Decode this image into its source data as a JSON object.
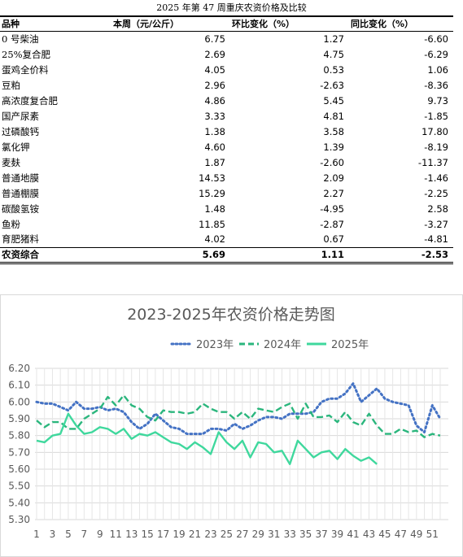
{
  "table": {
    "title": "2025 年第 47 周重庆农资价格及比较",
    "headers": [
      "品种",
      "本周（元/公斤）",
      "环比变化（%）",
      "同比变化（%）"
    ],
    "rows": [
      {
        "name": "0 号柴油",
        "price": "6.75",
        "mom": "1.27",
        "yoy": "-6.60"
      },
      {
        "name": "25%复合肥",
        "price": "2.69",
        "mom": "4.75",
        "yoy": "-6.29"
      },
      {
        "name": "蛋鸡全价料",
        "price": "4.05",
        "mom": "0.53",
        "yoy": "1.06"
      },
      {
        "name": "豆粕",
        "price": "2.96",
        "mom": "-2.63",
        "yoy": "-8.36"
      },
      {
        "name": "高浓度复合肥",
        "price": "4.86",
        "mom": "5.45",
        "yoy": "9.73"
      },
      {
        "name": "国产尿素",
        "price": "3.33",
        "mom": "4.81",
        "yoy": "-1.85"
      },
      {
        "name": "过磷酸钙",
        "price": "1.38",
        "mom": "3.58",
        "yoy": "17.80"
      },
      {
        "name": "氯化钾",
        "price": "4.60",
        "mom": "1.39",
        "yoy": "-8.19"
      },
      {
        "name": "麦麸",
        "price": "1.87",
        "mom": "-2.60",
        "yoy": "-11.37"
      },
      {
        "name": "普通地膜",
        "price": "14.53",
        "mom": "2.09",
        "yoy": "-1.46"
      },
      {
        "name": "普通棚膜",
        "price": "15.29",
        "mom": "2.27",
        "yoy": "-2.25"
      },
      {
        "name": "碳酸氢铵",
        "price": "1.48",
        "mom": "-4.95",
        "yoy": "2.58"
      },
      {
        "name": "鱼粉",
        "price": "11.85",
        "mom": "-2.87",
        "yoy": "-3.27"
      },
      {
        "name": "育肥猪料",
        "price": "4.02",
        "mom": "0.67",
        "yoy": "-4.81"
      }
    ],
    "total": {
      "name": "农资综合",
      "price": "5.69",
      "mom": "1.11",
      "yoy": "-2.53"
    }
  },
  "chart_data": {
    "type": "line",
    "title": "2023-2025年农资价格走势图",
    "xlabel": "",
    "ylabel": "",
    "ylim": [
      5.3,
      6.2
    ],
    "yticks": [
      "5.30",
      "5.40",
      "5.50",
      "5.60",
      "5.70",
      "5.80",
      "5.90",
      "6.00",
      "6.10",
      "6.20"
    ],
    "xticks": [
      "1",
      "3",
      "5",
      "7",
      "9",
      "11",
      "13",
      "15",
      "17",
      "19",
      "21",
      "23",
      "25",
      "27",
      "29",
      "31",
      "33",
      "35",
      "37",
      "39",
      "41",
      "43",
      "45",
      "47",
      "49",
      "51"
    ],
    "grid": true,
    "legend_position": "top",
    "series": [
      {
        "name": "2023年",
        "color": "#4472C4",
        "style": "dotted",
        "values": [
          6.0,
          5.99,
          5.99,
          5.97,
          5.95,
          6.0,
          5.96,
          5.96,
          5.97,
          5.95,
          5.96,
          5.94,
          5.88,
          5.84,
          5.87,
          5.93,
          5.89,
          5.85,
          5.84,
          5.81,
          5.81,
          5.81,
          5.84,
          5.84,
          5.83,
          5.87,
          5.84,
          5.86,
          5.89,
          5.91,
          5.91,
          5.9,
          5.93,
          5.93,
          5.93,
          5.94,
          6.0,
          6.02,
          6.02,
          6.05,
          6.11,
          6.0,
          6.04,
          6.08,
          6.02,
          6.0,
          5.99,
          5.98,
          5.86,
          5.82,
          5.98,
          5.9
        ]
      },
      {
        "name": "2024年",
        "color": "#2BB67D",
        "style": "dashed",
        "values": [
          5.89,
          5.85,
          5.88,
          5.88,
          5.84,
          5.84,
          5.9,
          5.93,
          5.96,
          6.03,
          5.98,
          6.04,
          5.98,
          5.96,
          5.91,
          5.89,
          5.95,
          5.94,
          5.94,
          5.93,
          5.94,
          5.99,
          5.96,
          5.94,
          5.94,
          5.9,
          5.94,
          5.9,
          5.96,
          5.95,
          5.94,
          5.97,
          5.99,
          5.9,
          5.99,
          5.91,
          5.91,
          5.92,
          5.88,
          5.94,
          5.88,
          5.86,
          5.93,
          5.86,
          5.81,
          5.81,
          5.84,
          5.82,
          5.83,
          5.79,
          5.81,
          5.8
        ]
      },
      {
        "name": "2025年",
        "color": "#3FD89D",
        "style": "solid",
        "values": [
          5.77,
          5.76,
          5.8,
          5.81,
          5.93,
          5.86,
          5.81,
          5.82,
          5.85,
          5.84,
          5.81,
          5.84,
          5.78,
          5.81,
          5.8,
          5.82,
          5.79,
          5.76,
          5.75,
          5.72,
          5.76,
          5.73,
          5.69,
          5.82,
          5.76,
          5.72,
          5.77,
          5.67,
          5.76,
          5.75,
          5.7,
          5.71,
          5.63,
          5.77,
          5.72,
          5.67,
          5.7,
          5.71,
          5.66,
          5.72,
          5.68,
          5.65,
          5.67,
          5.63
        ]
      }
    ]
  }
}
